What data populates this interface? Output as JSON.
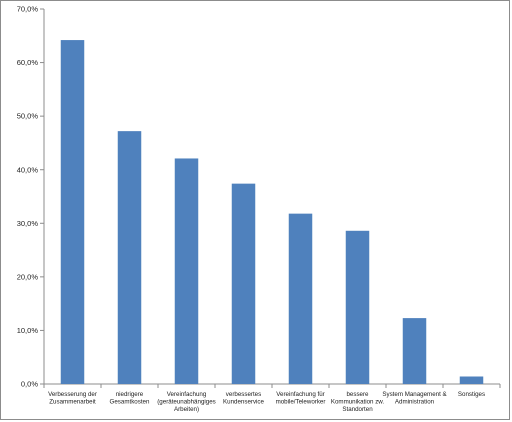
{
  "chart_data": {
    "type": "bar",
    "categories": [
      [
        "Verbesserung der",
        "Zusammenarbeit"
      ],
      [
        "niedrigere",
        "Gesamtkosten"
      ],
      [
        "Vereinfachung",
        "(geräteunabhängiges",
        "Arbeiten)"
      ],
      [
        "verbessertes",
        "Kundenservice"
      ],
      [
        "Vereinfachung für",
        "mobile/Teleworker"
      ],
      [
        "bessere",
        "Kommunikation zw.",
        "Standorten"
      ],
      [
        "System Management &",
        "Administration"
      ],
      [
        "Sonstiges"
      ]
    ],
    "values": [
      64.2,
      47.2,
      42.1,
      37.4,
      31.8,
      28.6,
      12.3,
      1.4
    ],
    "ylim": [
      0,
      70
    ],
    "yticks": [
      0,
      10,
      20,
      30,
      40,
      50,
      60,
      70
    ],
    "ytick_labels": [
      "0,0%",
      "10,0%",
      "20,0%",
      "30,0%",
      "40,0%",
      "50,0%",
      "60,0%",
      "70,0%"
    ],
    "grid": false,
    "legend": "none",
    "bar_color": "#4f81bd",
    "axis_color": "#8c8c8c"
  }
}
